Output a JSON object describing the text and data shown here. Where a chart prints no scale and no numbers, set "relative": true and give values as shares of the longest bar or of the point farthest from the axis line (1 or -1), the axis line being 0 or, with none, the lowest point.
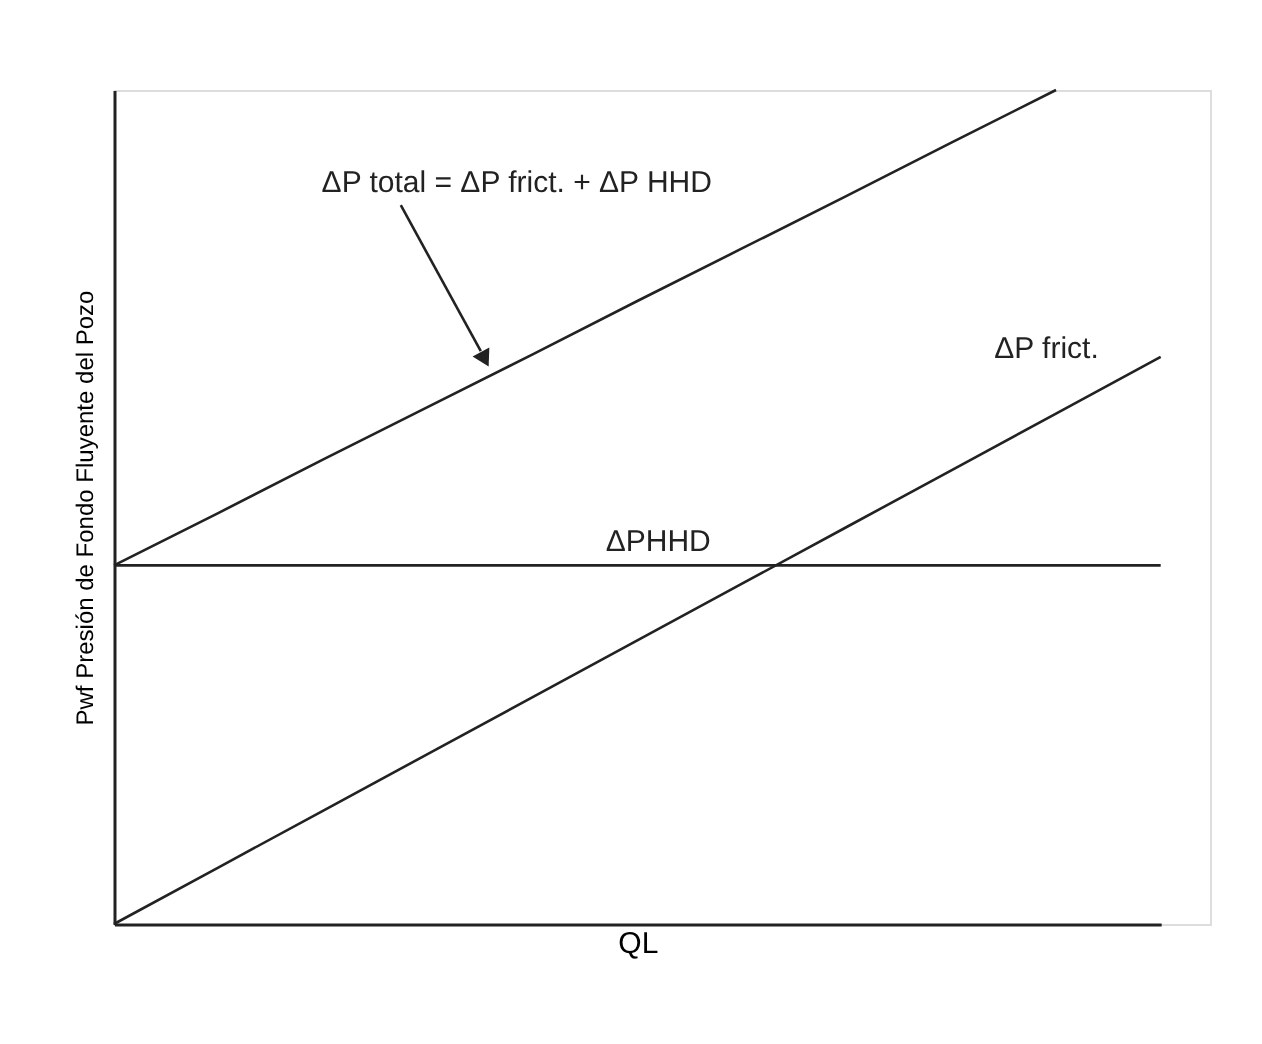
{
  "chart_data": {
    "type": "line",
    "relative": true,
    "xlabel": "QL",
    "ylabel": "Pwf Presión de Fondo Fluyente del Pozo",
    "grid": false,
    "marker": "none",
    "line_style": "solid",
    "tick_labels": false,
    "categories": [
      null,
      null,
      null,
      null,
      null,
      null,
      null,
      null,
      null,
      null,
      null
    ],
    "series": [
      {
        "name": "ΔP total = ΔP frict. + ΔP HHD",
        "color": "#222222",
        "values": [
          0.43,
          0.493,
          0.557,
          0.62,
          0.683,
          0.747,
          0.81,
          0.873,
          0.937,
          1.0,
          null
        ]
      },
      {
        "name": "ΔPHHD",
        "color": "#222222",
        "values": [
          0.43,
          0.43,
          0.43,
          0.43,
          0.43,
          0.43,
          0.43,
          0.43,
          0.43,
          0.43,
          0.43
        ]
      },
      {
        "name": "ΔP frict.",
        "color": "#222222",
        "values": [
          0,
          0.068,
          0.136,
          0.204,
          0.272,
          0.34,
          0.408,
          0.476,
          0.544,
          0.612,
          0.68
        ]
      }
    ]
  }
}
